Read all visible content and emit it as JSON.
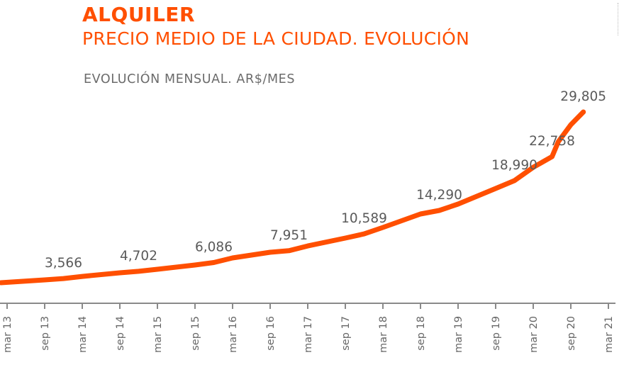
{
  "header": {
    "title": "ALQUILER",
    "subtitle": "PRECIO MEDIO DE LA CIUDAD. EVOLUCIÓN",
    "unit_label": "EVOLUCIÓN MENSUAL. AR$/MES"
  },
  "colors": {
    "accent": "#FF4F00",
    "line": "#FF4F00",
    "label": "#5a5a5a",
    "axis": "#8a8a8a"
  },
  "chart_data": {
    "type": "line",
    "title": "EVOLUCIÓN MENSUAL. AR$/MES",
    "xlabel": "",
    "ylabel": "",
    "ylim": [
      0,
      32000
    ],
    "grid": false,
    "legend": "none",
    "x_ticks": [
      "mar 13",
      "sep 13",
      "mar 14",
      "sep 14",
      "mar 15",
      "sep 15",
      "mar 16",
      "sep 16",
      "mar 17",
      "sep 17",
      "mar 18",
      "sep 18",
      "mar 19",
      "sep 19",
      "mar 20",
      "sep 20",
      "mar 21"
    ],
    "series": [
      {
        "points": [
          [
            "2013-02",
            2900
          ],
          [
            "2013-09",
            3350
          ],
          [
            "2013-12",
            3566
          ],
          [
            "2014-03",
            3900
          ],
          [
            "2014-09",
            4460
          ],
          [
            "2014-12",
            4702
          ],
          [
            "2015-03",
            5020
          ],
          [
            "2015-09",
            5690
          ],
          [
            "2015-12",
            6086
          ],
          [
            "2016-03",
            6810
          ],
          [
            "2016-09",
            7700
          ],
          [
            "2016-12",
            7951
          ],
          [
            "2017-03",
            8700
          ],
          [
            "2017-09",
            9930
          ],
          [
            "2017-12",
            10589
          ],
          [
            "2018-03",
            11610
          ],
          [
            "2018-09",
            13730
          ],
          [
            "2018-12",
            14290
          ],
          [
            "2019-03",
            15290
          ],
          [
            "2019-09",
            17750
          ],
          [
            "2019-12",
            18990
          ],
          [
            "2020-03",
            21090
          ],
          [
            "2020-06",
            22758
          ],
          [
            "2020-07",
            25100
          ],
          [
            "2020-09",
            27790
          ],
          [
            "2020-11",
            29805
          ]
        ]
      }
    ],
    "annotations": [
      {
        "date": "2013-12",
        "text": "3,566"
      },
      {
        "date": "2014-12",
        "text": "4,702"
      },
      {
        "date": "2015-12",
        "text": "6,086"
      },
      {
        "date": "2016-12",
        "text": "7,951"
      },
      {
        "date": "2017-12",
        "text": "10,589"
      },
      {
        "date": "2018-12",
        "text": "14,290"
      },
      {
        "date": "2019-12",
        "text": "18,990"
      },
      {
        "date": "2020-06",
        "text": "22,758"
      },
      {
        "date": "2020-11",
        "text": "29,805"
      }
    ]
  }
}
